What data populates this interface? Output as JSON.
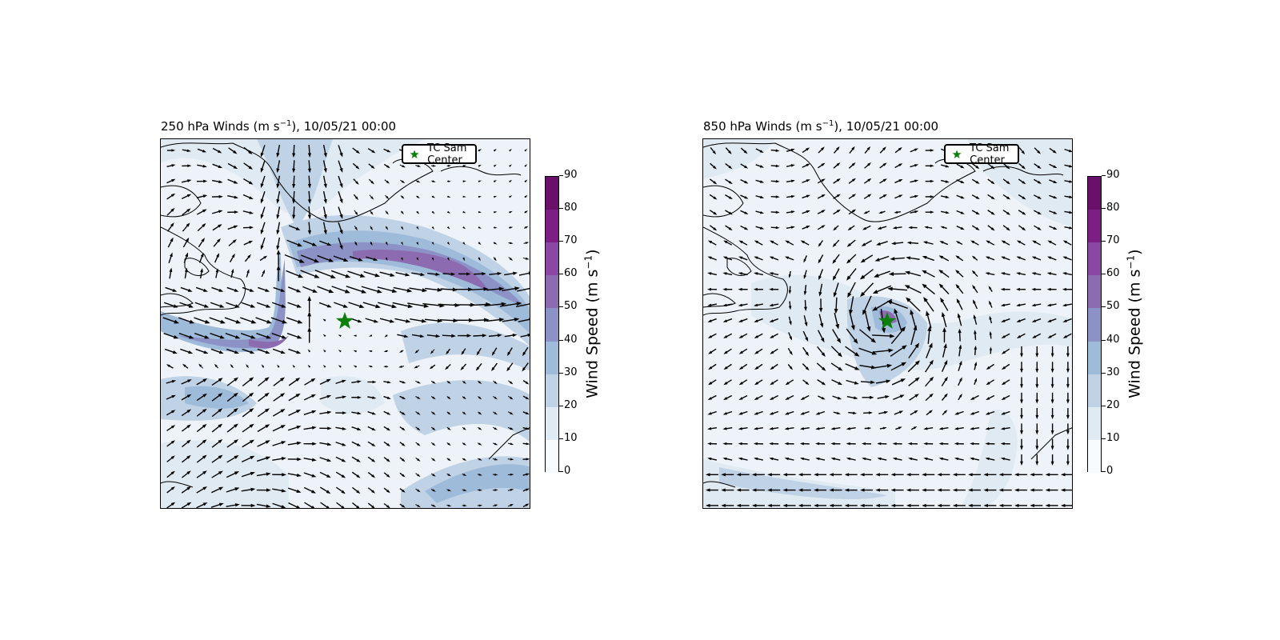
{
  "panels": [
    {
      "id": "upper",
      "title_main": "250 hPa Winds (m s",
      "title_exp": "−1",
      "title_tail": "), 10/05/21 00:00",
      "legend_label": "TC Sam Center",
      "colorbar_label_main": "Wind Speed (m s",
      "colorbar_label_exp": "−1",
      "colorbar_label_tail": ")"
    },
    {
      "id": "lower",
      "title_main": "850 hPa Winds (m s",
      "title_exp": "−1",
      "title_tail": "), 10/05/21 00:00",
      "legend_label": "TC Sam Center",
      "colorbar_label_main": "Wind Speed (m s",
      "colorbar_label_exp": "−1",
      "colorbar_label_tail": ")"
    }
  ],
  "colorbar": {
    "ticks": [
      "0",
      "10",
      "20",
      "30",
      "40",
      "50",
      "60",
      "70",
      "80",
      "90"
    ],
    "levels": [
      0,
      10,
      20,
      30,
      40,
      50,
      60,
      70,
      80,
      90
    ],
    "colors": [
      "#f7fbfd",
      "#dfeaf3",
      "#bfd2e6",
      "#9fbbda",
      "#8c92c6",
      "#8c6bb1",
      "#8a48a4",
      "#7d1e84",
      "#6a0f6a"
    ]
  },
  "markers": {
    "storm_color": "#0a7f0a",
    "storm_icon": "star-icon"
  },
  "colors": {
    "coastline": "#000000",
    "arrow": "#000000"
  }
}
